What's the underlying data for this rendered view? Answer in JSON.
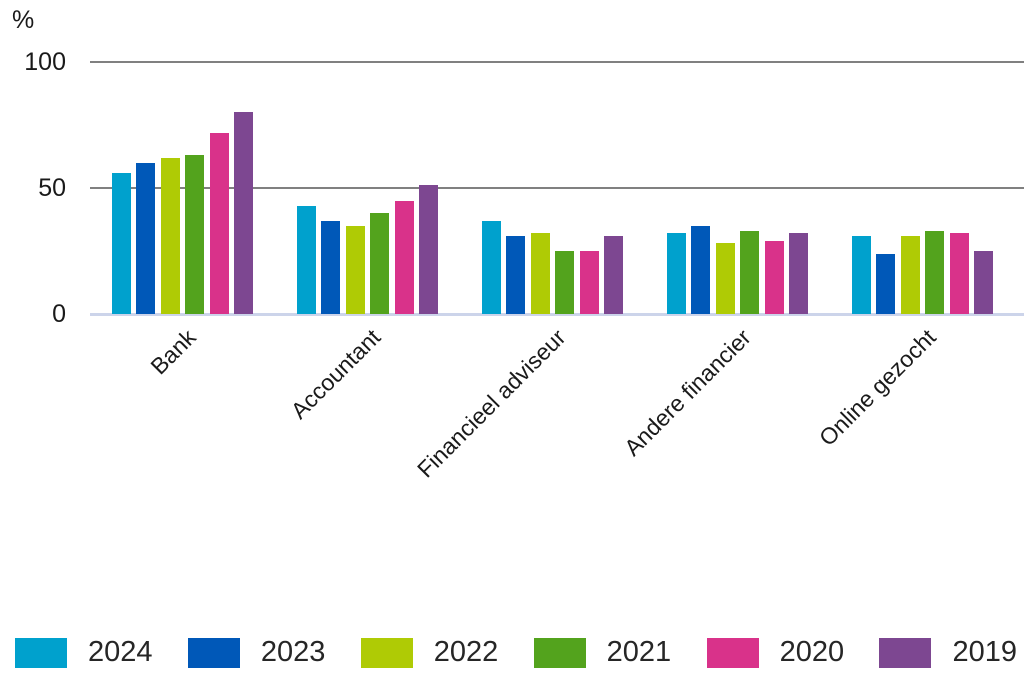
{
  "chart_data": {
    "type": "bar",
    "title": "",
    "ylabel": "%",
    "xlabel": "",
    "ylim": [
      0,
      100
    ],
    "yticks": [
      0,
      50,
      100
    ],
    "grid": true,
    "legend_position": "bottom",
    "categories": [
      "Bank",
      "Accountant",
      "Financieel adviseur",
      "Andere financier",
      "Online gezocht"
    ],
    "series": [
      {
        "name": "2024",
        "color": "#00a1cd",
        "values": [
          56,
          43,
          37,
          32,
          31
        ]
      },
      {
        "name": "2023",
        "color": "#0058b8",
        "values": [
          60,
          37,
          31,
          35,
          24
        ]
      },
      {
        "name": "2022",
        "color": "#afcb05",
        "values": [
          62,
          35,
          32,
          28,
          31
        ]
      },
      {
        "name": "2021",
        "color": "#53a31d",
        "values": [
          63,
          40,
          25,
          33,
          33
        ]
      },
      {
        "name": "2020",
        "color": "#d9328a",
        "values": [
          72,
          45,
          25,
          29,
          32
        ]
      },
      {
        "name": "2019",
        "color": "#7d4791",
        "values": [
          80,
          51,
          31,
          32,
          25
        ]
      }
    ]
  },
  "colors": {
    "gridline": "#808080",
    "baseline": "#ccd4ea",
    "text": "#1a1a1a"
  }
}
